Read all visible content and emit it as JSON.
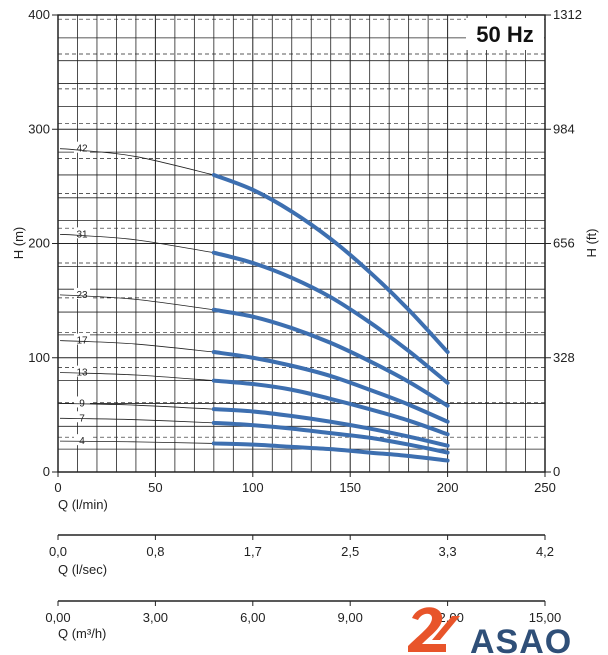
{
  "badge": "50 Hz",
  "brand": {
    "name": "ASAO",
    "accent": "#e8542a",
    "color": "#2f4f78"
  },
  "colors": {
    "curve": "#3d6fb0",
    "grid": "#222222"
  },
  "chart_data": {
    "type": "line",
    "xlabel": "Q (l/min)",
    "ylabel_left": "H (m)",
    "ylabel_right": "H (ft)",
    "xlim": [
      0,
      250
    ],
    "ylim": [
      0,
      400
    ],
    "x_ticks": [
      "0",
      "50",
      "100",
      "150",
      "200",
      "250"
    ],
    "y_ticks_left": [
      "0",
      "100",
      "200",
      "300",
      "400"
    ],
    "y_ticks_right": [
      "0",
      "328",
      "656",
      "984",
      "1312"
    ],
    "grid": true,
    "secondary_axes": [
      {
        "label": "Q (l/sec)",
        "ticks": [
          "0,0",
          "0,8",
          "1,7",
          "2,5",
          "3,3",
          "4,2"
        ]
      },
      {
        "label": "Q (m³/h)",
        "ticks": [
          "0,00",
          "3,00",
          "6,00",
          "9,00",
          "12,00",
          "15,00"
        ]
      }
    ],
    "series": [
      {
        "name": "42",
        "shutoff": 283,
        "x": [
          80,
          100,
          120,
          140,
          160,
          180,
          200
        ],
        "y": [
          260,
          247,
          228,
          204,
          175,
          142,
          105
        ]
      },
      {
        "name": "31",
        "shutoff": 208,
        "x": [
          80,
          100,
          120,
          140,
          160,
          180,
          200
        ],
        "y": [
          192,
          183,
          170,
          153,
          131,
          106,
          78
        ]
      },
      {
        "name": "23",
        "shutoff": 155,
        "x": [
          80,
          100,
          120,
          140,
          160,
          180,
          200
        ],
        "y": [
          142,
          136,
          126,
          113,
          97,
          79,
          58
        ]
      },
      {
        "name": "17",
        "shutoff": 115,
        "x": [
          80,
          100,
          120,
          140,
          160,
          180,
          200
        ],
        "y": [
          105,
          100,
          93,
          84,
          72,
          59,
          44
        ]
      },
      {
        "name": "13",
        "shutoff": 87,
        "x": [
          80,
          100,
          120,
          140,
          160,
          180,
          200
        ],
        "y": [
          80,
          77,
          72,
          64,
          55,
          45,
          33
        ]
      },
      {
        "name": "9",
        "shutoff": 60,
        "x": [
          80,
          100,
          120,
          140,
          160,
          180,
          200
        ],
        "y": [
          55,
          53,
          49,
          44,
          38,
          31,
          23
        ]
      },
      {
        "name": "7",
        "shutoff": 47,
        "x": [
          80,
          100,
          120,
          140,
          160,
          180,
          200
        ],
        "y": [
          43,
          41,
          38,
          34,
          30,
          24,
          17
        ]
      },
      {
        "name": "4",
        "shutoff": 27,
        "x": [
          80,
          100,
          120,
          140,
          160,
          180,
          200
        ],
        "y": [
          25,
          24,
          22,
          20,
          17,
          14,
          10
        ]
      }
    ]
  }
}
